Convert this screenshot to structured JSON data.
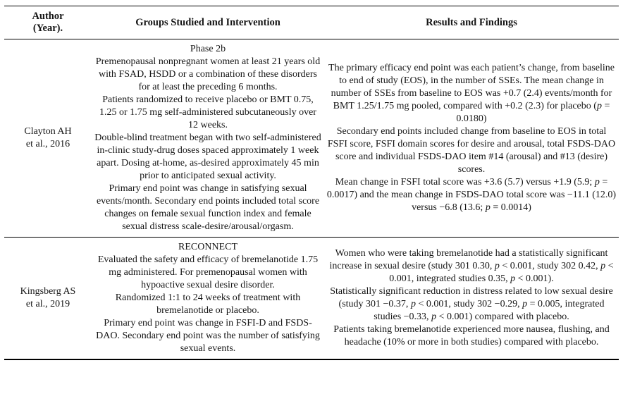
{
  "page": {
    "background": "#ffffff",
    "text_color": "#151515"
  },
  "table": {
    "headers": [
      "Author (Year).",
      "Groups Studied and Intervention",
      "Results and Findings"
    ],
    "rows": [
      {
        "author_lines": [
          "Clayton AH",
          "et al., 2016"
        ],
        "groups": [
          "Phase 2b",
          "Premenopausal nonpregnant women at least 21 years old with FSAD, HSDD or a combination of these disorders for at least the preceding 6 months.",
          "Patients randomized to receive placebo or BMT 0.75, 1.25 or 1.75 mg self-administered subcutaneously over 12 weeks.",
          "Double-blind treatment began with two self-administered in-clinic study-drug doses spaced approximately 1 week apart. Dosing at-home, as-desired approximately 45 min prior to anticipated sexual activity.",
          "Primary end point was change in satisfying sexual events/month. Secondary end points included total score changes on female sexual function index and female sexual distress scale-desire/arousal/orgasm."
        ],
        "results": [
          "The primary efficacy end point was each patient’s change, from baseline to end of study (EOS), in the number of SSEs. The mean change in number of SSEs from baseline to EOS was +0.7 (2.4) events/month for BMT 1.25/1.75 mg pooled, compared with +0.2 (2.3) for placebo (p = 0.0180)",
          "Secondary end points included change from baseline to EOS in total FSFI score, FSFI domain scores for desire and arousal, total FSDS-DAO score and individual FSDS-DAO item #14 (arousal) and #13 (desire) scores.",
          "Mean change in FSFI total score was +3.6 (5.7) versus +1.9 (5.9; p = 0.0017) and the mean change in FSDS-DAO total score was −11.1 (12.0) versus −6.8 (13.6; p = 0.0014)"
        ]
      },
      {
        "author_lines": [
          "Kingsberg AS",
          "et al., 2019"
        ],
        "groups": [
          "RECONNECT",
          "Evaluated the safety and efficacy of bremelanotide 1.75 mg administered. For premenopausal women with hypoactive sexual desire disorder.",
          "Randomized 1:1 to 24 weeks of treatment with bremelanotide or placebo.",
          "Primary end point was change in FSFI-D and FSDS-DAO. Secondary end point was the number of satisfying sexual events."
        ],
        "results": [
          "Women who were taking bremelanotide had a statistically significant increase in sexual desire (study 301 0.30, p < 0.001, study 302 0.42, p < 0.001, integrated studies 0.35, p < 0.001).",
          "Statistically significant reduction in distress related to low sexual desire (study 301 −0.37, p < 0.001, study 302 −0.29, p = 0.005, integrated studies −0.33, p < 0.001) compared with placebo.",
          "Patients taking bremelanotide experienced more nausea, flushing, and headache (10% or more in both studies) compared with placebo."
        ]
      }
    ]
  }
}
